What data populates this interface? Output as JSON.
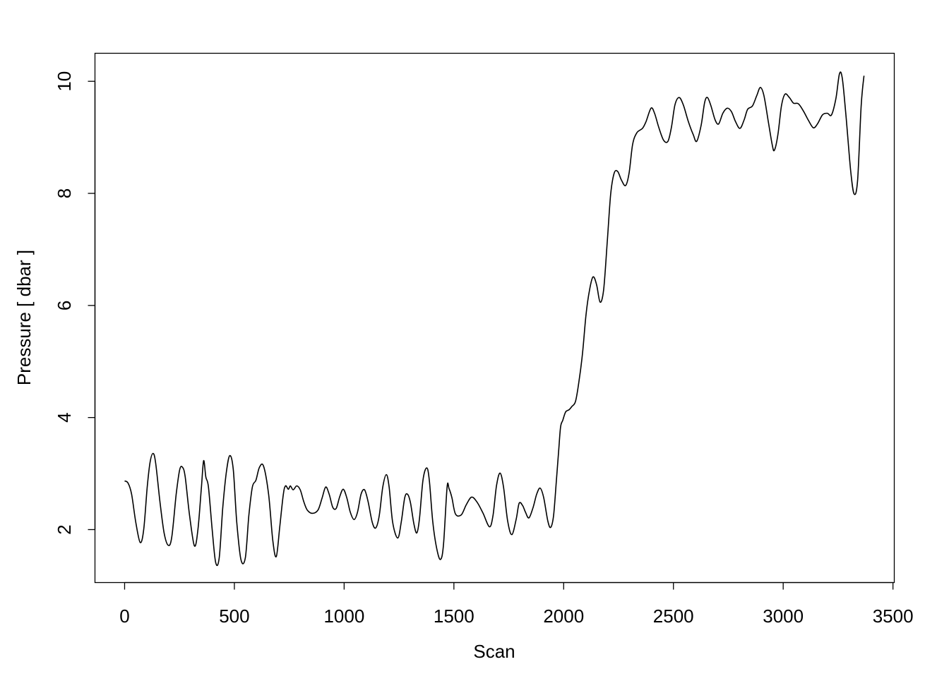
{
  "chart_data": {
    "type": "line",
    "title": "",
    "xlabel": "Scan",
    "ylabel": "Pressure [ dbar ]",
    "xlim": [
      -135,
      3506
    ],
    "ylim": [
      1.055,
      10.5
    ],
    "xticks": [
      0,
      500,
      1000,
      1500,
      2000,
      2500,
      3000,
      3500
    ],
    "xtick_labels": [
      "0",
      "500",
      "1000",
      "1500",
      "2000",
      "2500",
      "3000",
      "3500"
    ],
    "yticks": [
      2,
      4,
      6,
      8,
      10
    ],
    "ytick_labels": [
      "2",
      "4",
      "6",
      "8",
      "10"
    ],
    "grid": false,
    "line_color": "#000000",
    "series": [
      {
        "x": [
          0,
          16,
          32,
          51,
          71,
          87,
          103,
          116,
          129,
          141,
          161,
          180,
          199,
          215,
          235,
          251,
          264,
          276,
          296,
          318,
          334,
          350,
          360,
          370,
          382,
          399,
          415,
          431,
          447,
          463,
          479,
          495,
          511,
          530,
          550,
          566,
          582,
          598,
          614,
          633,
          656,
          675,
          691,
          707,
          723,
          733,
          746,
          755,
          768,
          784,
          800,
          816,
          832,
          855,
          881,
          900,
          916,
          932,
          948,
          964,
          980,
          996,
          1012,
          1028,
          1045,
          1061,
          1077,
          1093,
          1109,
          1128,
          1144,
          1160,
          1176,
          1192,
          1205,
          1221,
          1244,
          1260,
          1276,
          1289,
          1302,
          1318,
          1331,
          1343,
          1359,
          1376,
          1388,
          1404,
          1424,
          1440,
          1453,
          1469,
          1478,
          1491,
          1507,
          1533,
          1556,
          1581,
          1607,
          1633,
          1662,
          1678,
          1694,
          1710,
          1726,
          1745,
          1764,
          1784,
          1797,
          1813,
          1826,
          1842,
          1861,
          1877,
          1893,
          1909,
          1928,
          1941,
          1954,
          1967,
          1977,
          1986,
          1996,
          2009,
          2025,
          2038,
          2054,
          2070,
          2086,
          2102,
          2118,
          2134,
          2150,
          2166,
          2182,
          2198,
          2214,
          2230,
          2246,
          2263,
          2282,
          2298,
          2314,
          2333,
          2359,
          2375,
          2398,
          2414,
          2433,
          2455,
          2475,
          2491,
          2507,
          2526,
          2545,
          2568,
          2590,
          2606,
          2626,
          2642,
          2655,
          2671,
          2690,
          2706,
          2725,
          2745,
          2764,
          2783,
          2803,
          2822,
          2838,
          2860,
          2880,
          2896,
          2912,
          2931,
          2950,
          2960,
          2976,
          2992,
          3008,
          3028,
          3047,
          3069,
          3092,
          3114,
          3137,
          3156,
          3179,
          3201,
          3220,
          3240,
          3256,
          3269,
          3285,
          3307,
          3323,
          3339,
          3355,
          3368
        ],
        "y": [
          2.87,
          2.83,
          2.63,
          2.13,
          1.77,
          2.0,
          2.76,
          3.2,
          3.36,
          3.2,
          2.5,
          1.94,
          1.72,
          1.87,
          2.63,
          3.07,
          3.11,
          2.94,
          2.25,
          1.71,
          2.0,
          2.76,
          3.23,
          2.94,
          2.76,
          2.0,
          1.41,
          1.5,
          2.38,
          3.01,
          3.32,
          3.07,
          2.13,
          1.46,
          1.5,
          2.25,
          2.76,
          2.88,
          3.11,
          3.13,
          2.63,
          1.81,
          1.52,
          2.06,
          2.63,
          2.78,
          2.72,
          2.78,
          2.71,
          2.78,
          2.71,
          2.5,
          2.35,
          2.29,
          2.35,
          2.57,
          2.76,
          2.63,
          2.4,
          2.38,
          2.59,
          2.72,
          2.57,
          2.31,
          2.18,
          2.31,
          2.63,
          2.71,
          2.5,
          2.13,
          2.03,
          2.25,
          2.76,
          2.98,
          2.76,
          2.13,
          1.85,
          2.13,
          2.57,
          2.63,
          2.48,
          2.1,
          1.94,
          2.19,
          2.88,
          3.1,
          2.88,
          2.13,
          1.62,
          1.47,
          1.75,
          2.76,
          2.73,
          2.57,
          2.28,
          2.26,
          2.44,
          2.58,
          2.48,
          2.29,
          2.05,
          2.25,
          2.78,
          3.01,
          2.76,
          2.15,
          1.91,
          2.19,
          2.47,
          2.43,
          2.31,
          2.21,
          2.4,
          2.63,
          2.74,
          2.57,
          2.15,
          2.04,
          2.25,
          2.88,
          3.39,
          3.83,
          3.95,
          4.1,
          4.14,
          4.2,
          4.29,
          4.65,
          5.15,
          5.84,
          6.28,
          6.51,
          6.37,
          6.06,
          6.28,
          7.1,
          7.98,
          8.36,
          8.39,
          8.24,
          8.14,
          8.36,
          8.87,
          9.08,
          9.16,
          9.28,
          9.52,
          9.43,
          9.18,
          8.95,
          8.93,
          9.18,
          9.58,
          9.71,
          9.58,
          9.28,
          9.05,
          8.93,
          9.21,
          9.62,
          9.71,
          9.56,
          9.31,
          9.24,
          9.43,
          9.52,
          9.46,
          9.28,
          9.16,
          9.31,
          9.5,
          9.56,
          9.75,
          9.89,
          9.75,
          9.31,
          8.87,
          8.77,
          9.05,
          9.56,
          9.77,
          9.71,
          9.61,
          9.6,
          9.47,
          9.31,
          9.17,
          9.24,
          9.4,
          9.43,
          9.4,
          9.69,
          10.13,
          10.06,
          9.43,
          8.42,
          7.99,
          8.24,
          9.56,
          10.1
        ]
      }
    ]
  }
}
